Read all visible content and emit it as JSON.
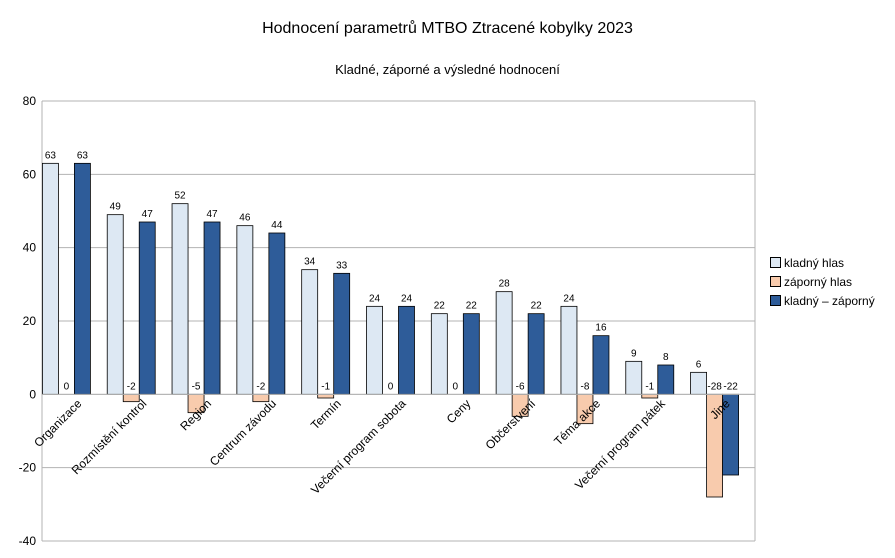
{
  "chart_data": {
    "type": "bar",
    "title": "Hodnocení parametrů MTBO Ztracené kobylky 2023",
    "subtitle": "Kladné, záporné a výsledné hodnocení",
    "categories": [
      "Organizace",
      "Rozmístění kontrol",
      "Region",
      "Centrum závodu",
      "Termín",
      "Večerní program sobota",
      "Ceny",
      "Občerstvení",
      "Téma akce",
      "Večerní program pátek",
      "Jiné"
    ],
    "series": [
      {
        "name": "kladný hlas",
        "values": [
          63,
          49,
          52,
          46,
          34,
          24,
          22,
          28,
          24,
          9,
          6
        ],
        "color": "#dde8f3"
      },
      {
        "name": "záporný hlas",
        "values": [
          0,
          -2,
          -5,
          -2,
          -1,
          0,
          0,
          -6,
          -8,
          -1,
          -28
        ],
        "color": "#f8cbad"
      },
      {
        "name": "kladný – záporný",
        "values": [
          63,
          47,
          47,
          44,
          33,
          24,
          22,
          22,
          16,
          8,
          -22
        ],
        "color": "#2e5c99"
      }
    ],
    "ylim": [
      -40,
      80
    ],
    "yticks": [
      -40,
      -20,
      0,
      20,
      40,
      60,
      80
    ],
    "grid": true,
    "legend": "right"
  }
}
